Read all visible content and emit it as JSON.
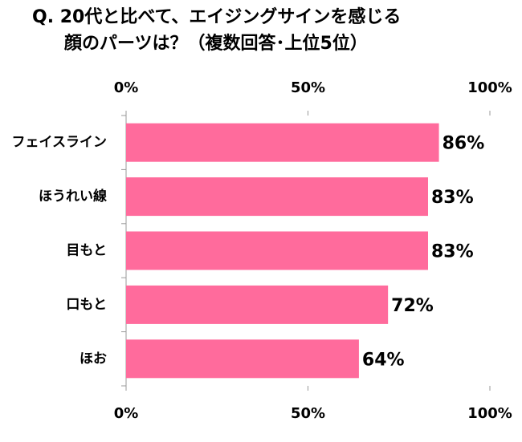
{
  "chart_data": {
    "type": "bar",
    "orientation": "horizontal",
    "title": [
      "Q. 20代と比べて、エイジングサインを感じる",
      "顔のパーツは？（複数回答･上位5位）"
    ],
    "categories": [
      "フェイスライン",
      "ほうれい線",
      "目もと",
      "口もと",
      "ほお"
    ],
    "values": [
      86,
      83,
      83,
      72,
      64
    ],
    "value_labels": [
      "86%",
      "83%",
      "83%",
      "72%",
      "64%"
    ],
    "color": "#ff6b9c",
    "xlim": [
      0,
      100
    ],
    "xticks": [
      {
        "value": 0,
        "label": "0%"
      },
      {
        "value": 50,
        "label": "50%"
      },
      {
        "value": 100,
        "label": "100%"
      }
    ]
  }
}
